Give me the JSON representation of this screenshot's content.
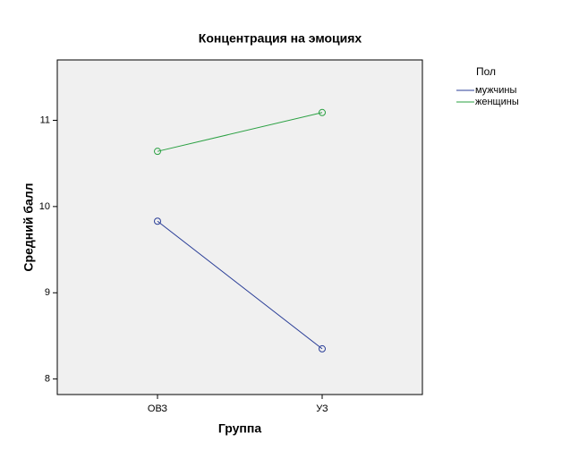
{
  "chart_data": {
    "type": "line",
    "title": "Концентрация на эмоциях",
    "x_label": "Группа",
    "y_label": "Средний балл",
    "categories": [
      "ОВЗ",
      "УЗ"
    ],
    "legend_title": "Пол",
    "series": [
      {
        "name": "мужчины",
        "color": "#2b3f98",
        "values": [
          9.83,
          8.35
        ]
      },
      {
        "name": "женщины",
        "color": "#2aa042",
        "values": [
          10.64,
          11.09
        ]
      }
    ],
    "ylim": [
      7.82,
      11.7
    ],
    "yticks": [
      8,
      9,
      10,
      11
    ]
  }
}
